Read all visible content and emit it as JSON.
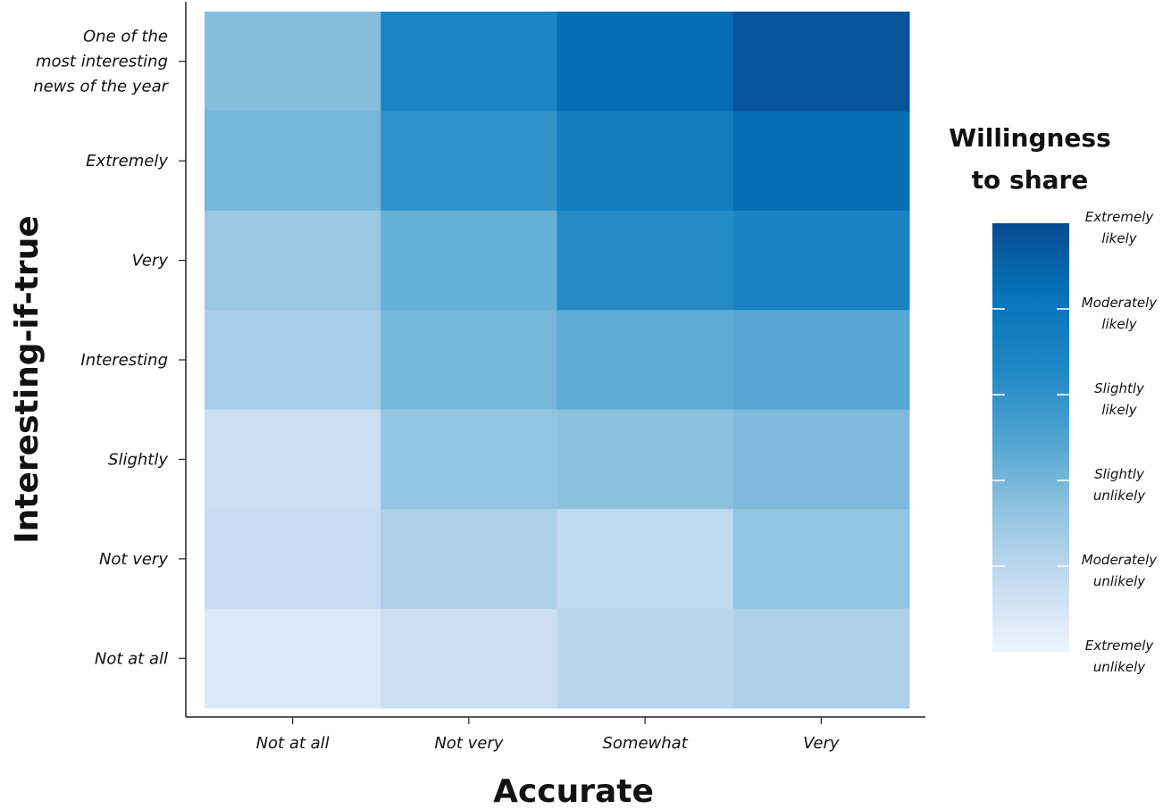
{
  "chart_data": {
    "type": "heatmap",
    "x_title": "Accurate",
    "y_title": "Interesting-if-true",
    "x_categories": [
      "Not at all",
      "Not very",
      "Somewhat",
      "Very"
    ],
    "y_categories": [
      "One of the most interesting news of the year",
      "Extremely",
      "Very",
      "Interesting",
      "Slightly",
      "Not very",
      "Not at all"
    ],
    "y_category_lines": [
      [
        "One of the",
        "most interesting",
        "news of the year"
      ],
      [
        "Extremely"
      ],
      [
        "Very"
      ],
      [
        "Interesting"
      ],
      [
        "Slightly"
      ],
      [
        "Not very"
      ],
      [
        "Not at all"
      ]
    ],
    "values": [
      [
        1.8,
        3.4,
        4.3,
        4.8
      ],
      [
        2.0,
        3.0,
        3.7,
        4.3
      ],
      [
        1.5,
        2.2,
        3.2,
        3.5
      ],
      [
        1.3,
        2.0,
        2.3,
        2.4
      ],
      [
        0.7,
        1.6,
        1.7,
        1.9
      ],
      [
        0.8,
        1.2,
        0.9,
        1.6
      ],
      [
        0.4,
        0.7,
        1.0,
        1.2
      ]
    ],
    "legend": {
      "title_lines": [
        "Willingness",
        "to share"
      ],
      "labels": [
        [
          "Extremely",
          "likely"
        ],
        [
          "Moderately",
          "likely"
        ],
        [
          "Slightly",
          "likely"
        ],
        [
          "Slightly",
          "unlikely"
        ],
        [
          "Moderately",
          "unlikely"
        ],
        [
          "Extremely",
          "unlikely"
        ]
      ],
      "range": [
        0,
        5
      ],
      "placement": "right"
    },
    "colors": {
      "low": "#eaf1fb",
      "mid": "#6ab3d9",
      "high": "#0a4f99",
      "scale_stops": [
        "#eff5fd",
        "#c5dbf0",
        "#8fc3df",
        "#4fa3d0",
        "#1d86c4",
        "#0674b8",
        "#074a90"
      ]
    }
  }
}
